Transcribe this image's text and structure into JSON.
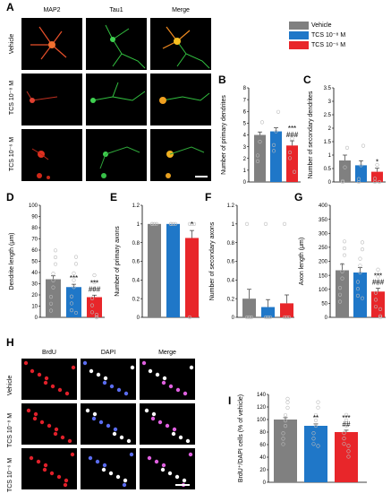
{
  "panel_letters": {
    "A": "A",
    "B": "B",
    "C": "C",
    "D": "D",
    "E": "E",
    "F": "F",
    "G": "G",
    "H": "H",
    "I": "I"
  },
  "panelA": {
    "columns": [
      "MAP2",
      "Tau1",
      "Merge"
    ],
    "rows": [
      "Vehicle",
      "TCS 10⁻⁸ M",
      "TCS 10⁻⁶ M"
    ]
  },
  "panelH": {
    "columns": [
      "BrdU",
      "DAPI",
      "Merge"
    ],
    "rows": [
      "Vehicle",
      "TCS 10⁻⁸ M",
      "TCS 10⁻⁶ M"
    ]
  },
  "legend": {
    "items": [
      {
        "label": "Vehicle",
        "color": "#808080"
      },
      {
        "label": "TCS 10⁻⁸ M",
        "color": "#1f77c8"
      },
      {
        "label": "TCS 10⁻⁶ M",
        "color": "#e8262a"
      }
    ]
  },
  "colors": {
    "vehicle": "#808080",
    "tcs8": "#1f77c8",
    "tcs6": "#e8262a"
  },
  "chart_data": [
    {
      "id": "B",
      "type": "bar",
      "categories": [
        "Vehicle",
        "TCS 10⁻⁸ M",
        "TCS 10⁻⁶ M"
      ],
      "values": [
        4.0,
        4.3,
        3.1
      ],
      "errors": [
        0.25,
        0.3,
        0.4
      ],
      "ylabel": "Number of primary dendrites",
      "ylim": [
        0,
        8
      ],
      "yticks": [
        0,
        1,
        2,
        3,
        4,
        5,
        6,
        7,
        8
      ],
      "annotations": [
        "",
        "",
        "***\n###"
      ]
    },
    {
      "id": "C",
      "type": "bar",
      "categories": [
        "Vehicle",
        "TCS 10⁻⁸ M",
        "TCS 10⁻⁶ M"
      ],
      "values": [
        0.8,
        0.62,
        0.38
      ],
      "errors": [
        0.2,
        0.17,
        0.13
      ],
      "ylabel": "Number of secondary dendrites",
      "ylim": [
        0,
        3.5
      ],
      "yticks": [
        0,
        0.5,
        1,
        1.5,
        2,
        2.5,
        3,
        3.5
      ],
      "annotations": [
        "",
        "",
        "*"
      ]
    },
    {
      "id": "D",
      "type": "bar",
      "categories": [
        "Vehicle",
        "TCS 10⁻⁸ M",
        "TCS 10⁻⁶ M"
      ],
      "values": [
        34,
        27,
        18
      ],
      "errors": [
        3,
        2.5,
        1.8
      ],
      "ylabel": "Dendrite length (μm)",
      "ylim": [
        0,
        100
      ],
      "yticks": [
        0,
        10,
        20,
        30,
        40,
        50,
        60,
        70,
        80,
        90,
        100
      ],
      "annotations": [
        "",
        "***",
        "***\n###"
      ]
    },
    {
      "id": "E",
      "type": "bar",
      "categories": [
        "Vehicle",
        "TCS 10⁻⁸ M",
        "TCS 10⁻⁶ M"
      ],
      "values": [
        1.0,
        1.0,
        0.85
      ],
      "errors": [
        0,
        0,
        0.08
      ],
      "ylabel": "Number of primary axons",
      "ylim": [
        0,
        1.2
      ],
      "yticks": [
        0,
        0.2,
        0.4,
        0.6,
        0.8,
        1,
        1.2
      ],
      "annotations": [
        "",
        "",
        "*"
      ]
    },
    {
      "id": "F",
      "type": "bar",
      "categories": [
        "Vehicle",
        "TCS 10⁻⁸ M",
        "TCS 10⁻⁶ M"
      ],
      "values": [
        0.2,
        0.11,
        0.15
      ],
      "errors": [
        0.1,
        0.08,
        0.09
      ],
      "ylabel": "Number of secondary axons",
      "ylim": [
        0,
        1.2
      ],
      "yticks": [
        0,
        0.2,
        0.4,
        0.6,
        0.8,
        1,
        1.2
      ],
      "annotations": [
        "",
        "",
        ""
      ]
    },
    {
      "id": "G",
      "type": "bar",
      "categories": [
        "Vehicle",
        "TCS 10⁻⁸ M",
        "TCS 10⁻⁶ M"
      ],
      "values": [
        168,
        160,
        92
      ],
      "errors": [
        22,
        18,
        12
      ],
      "ylabel": "Axon length (μm)",
      "ylim": [
        0,
        400
      ],
      "yticks": [
        0,
        50,
        100,
        150,
        200,
        250,
        300,
        350,
        400
      ],
      "annotations": [
        "",
        "",
        "***\n###"
      ]
    },
    {
      "id": "I",
      "type": "bar",
      "categories": [
        "Vehicle",
        "TCS 10⁻⁸ M",
        "TCS 10⁻⁶ M"
      ],
      "values": [
        100,
        90,
        80
      ],
      "errors": [
        3,
        3,
        3
      ],
      "ylabel": "BrdU⁺/DAPI cells (% of vehicle)",
      "ylim": [
        0,
        140
      ],
      "yticks": [
        0,
        20,
        40,
        60,
        80,
        100,
        120,
        140
      ],
      "annotations": [
        "",
        "**",
        "***\n##"
      ]
    }
  ]
}
